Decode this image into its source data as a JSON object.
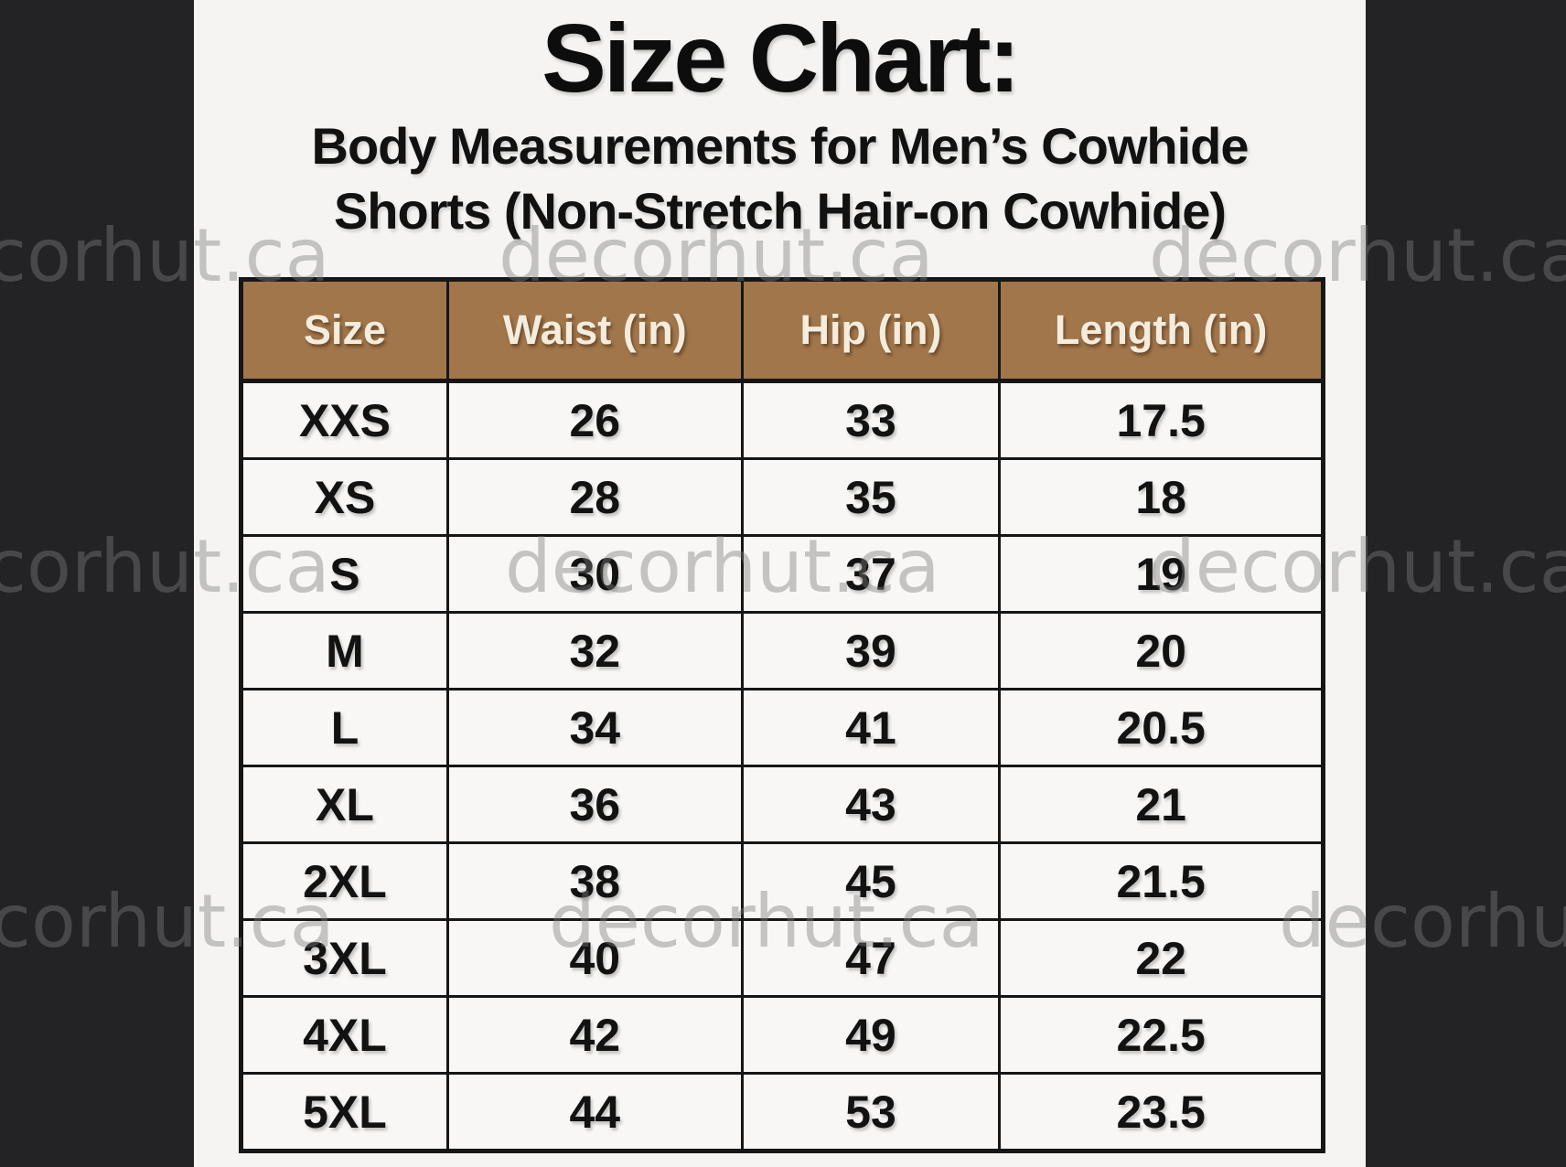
{
  "page": {
    "title": "Size Chart:",
    "subtitle_line1": "Body Measurements for Men’s Cowhide",
    "subtitle_line2": "Shorts (Non-Stretch Hair-on Cowhide)"
  },
  "watermark": {
    "text": "decorhut.ca"
  },
  "colors": {
    "frame_background": "#232326",
    "canvas_background": "#f5f4f2",
    "table_header_background": "#a1764b",
    "table_header_text": "#f4ecdd",
    "table_border": "#161616",
    "body_text": "#111111",
    "watermark_gray": "#7c7c7c"
  },
  "chart_data": {
    "type": "table",
    "title": "Size Chart:",
    "subtitle": "Body Measurements for Men’s Cowhide Shorts (Non-Stretch Hair-on Cowhide)",
    "columns": [
      "Size",
      "Waist (in)",
      "Hip (in)",
      "Length (in)"
    ],
    "rows": [
      [
        "XXS",
        "26",
        "33",
        "17.5"
      ],
      [
        "XS",
        "28",
        "35",
        "18"
      ],
      [
        "S",
        "30",
        "37",
        "19"
      ],
      [
        "M",
        "32",
        "39",
        "20"
      ],
      [
        "L",
        "34",
        "41",
        "20.5"
      ],
      [
        "XL",
        "36",
        "43",
        "21"
      ],
      [
        "2XL",
        "38",
        "45",
        "21.5"
      ],
      [
        "3XL",
        "40",
        "47",
        "22"
      ],
      [
        "4XL",
        "42",
        "49",
        "22.5"
      ],
      [
        "5XL",
        "44",
        "53",
        "23.5"
      ]
    ]
  }
}
